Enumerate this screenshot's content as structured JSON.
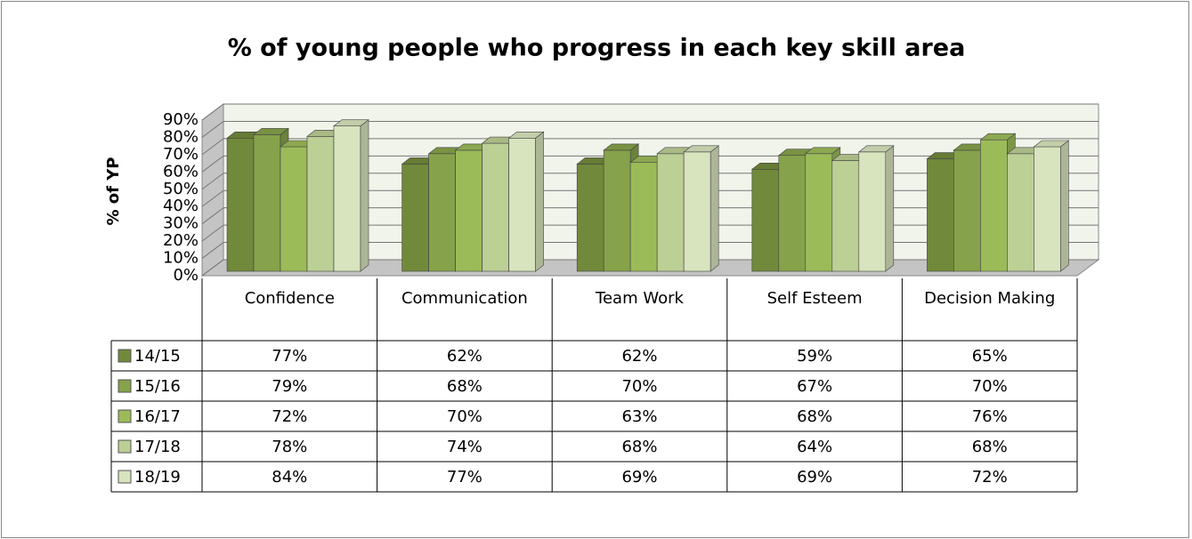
{
  "chart_data": {
    "type": "bar3d",
    "title": "% of young people who progress in each key skill area",
    "y_label": "% of YP",
    "categories": [
      "Confidence",
      "Communication",
      "Team Work",
      "Self Esteem",
      "Decision Making"
    ],
    "series": [
      {
        "name": "14/15",
        "color": "#71893a",
        "values": [
          77,
          62,
          62,
          59,
          65
        ],
        "value_labels": [
          "77%",
          "62%",
          "62%",
          "59%",
          "65%"
        ]
      },
      {
        "name": "15/16",
        "color": "#86a24a",
        "values": [
          79,
          68,
          70,
          67,
          70
        ],
        "value_labels": [
          "79%",
          "68%",
          "70%",
          "67%",
          "70%"
        ]
      },
      {
        "name": "16/17",
        "color": "#9bbb59",
        "values": [
          72,
          70,
          63,
          68,
          76
        ],
        "value_labels": [
          "72%",
          "70%",
          "63%",
          "68%",
          "76%"
        ]
      },
      {
        "name": "17/18",
        "color": "#bccf95",
        "values": [
          78,
          74,
          68,
          64,
          68
        ],
        "value_labels": [
          "78%",
          "74%",
          "68%",
          "64%",
          "68%"
        ]
      },
      {
        "name": "18/19",
        "color": "#d7e4bd",
        "values": [
          84,
          77,
          69,
          69,
          72
        ],
        "value_labels": [
          "84%",
          "77%",
          "69%",
          "69%",
          "72%"
        ]
      }
    ],
    "ylim": [
      0,
      90
    ],
    "yticks": [
      {
        "value": 0,
        "label": "0%"
      },
      {
        "value": 10,
        "label": "10%"
      },
      {
        "value": 20,
        "label": "20%"
      },
      {
        "value": 30,
        "label": "30%"
      },
      {
        "value": 40,
        "label": "40%"
      },
      {
        "value": 50,
        "label": "50%"
      },
      {
        "value": 60,
        "label": "60%"
      },
      {
        "value": 70,
        "label": "70%"
      },
      {
        "value": 80,
        "label": "80%"
      },
      {
        "value": 90,
        "label": "90%"
      }
    ],
    "grid": true
  }
}
